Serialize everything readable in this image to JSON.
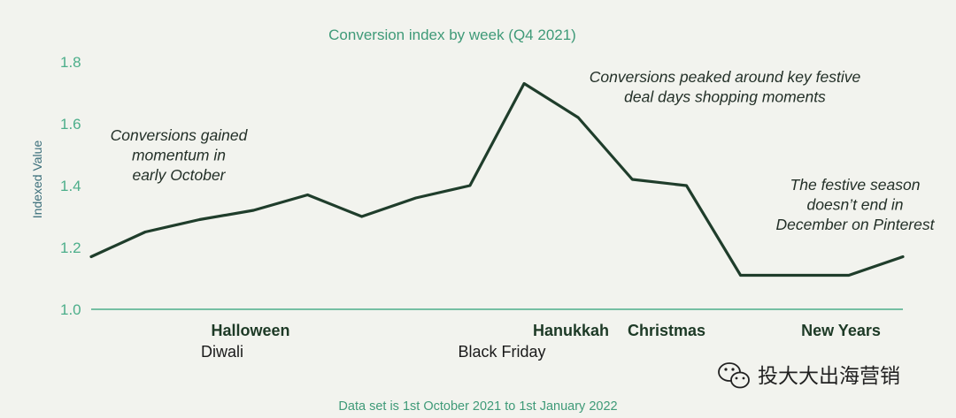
{
  "chart_data": {
    "type": "line",
    "title": "Conversion index by week (Q4 2021)",
    "ylabel": "Indexed Value",
    "xlabel": "",
    "ylim": [
      1.0,
      1.8
    ],
    "yticks": [
      "1.0",
      "1.2",
      "1.4",
      "1.6",
      "1.8"
    ],
    "grid": false,
    "series": [
      {
        "values": [
          1.17,
          1.25,
          1.29,
          1.32,
          1.37,
          1.3,
          1.36,
          1.4,
          1.73,
          1.62,
          1.42,
          1.4,
          1.11,
          1.11,
          1.11,
          1.17
        ]
      }
    ],
    "events": [
      {
        "label": "Halloween",
        "style": "bold"
      },
      {
        "label": "Diwali",
        "style": "normal"
      },
      {
        "label": "Black Friday",
        "style": "normal"
      },
      {
        "label": "Hanukkah",
        "style": "bold"
      },
      {
        "label": "Christmas",
        "style": "bold"
      },
      {
        "label": "New Years",
        "style": "bold"
      }
    ],
    "annotations": [
      {
        "lines": [
          "Conversions gained",
          "momentum in",
          "early October"
        ]
      },
      {
        "lines": [
          "Conversions peaked around key festive",
          "deal days shopping moments"
        ]
      },
      {
        "lines": [
          "The festive season",
          "doesn’t end in",
          "December on Pinterest"
        ]
      }
    ],
    "footnote": "Data set is 1st October 2021 to 1st January 2022",
    "colors": {
      "line": "#1f3d2b",
      "axis": "#4cae8a",
      "accent": "#3f9a78"
    }
  },
  "watermark": {
    "icon": "wechat-icon",
    "text": "投大大出海营销"
  }
}
